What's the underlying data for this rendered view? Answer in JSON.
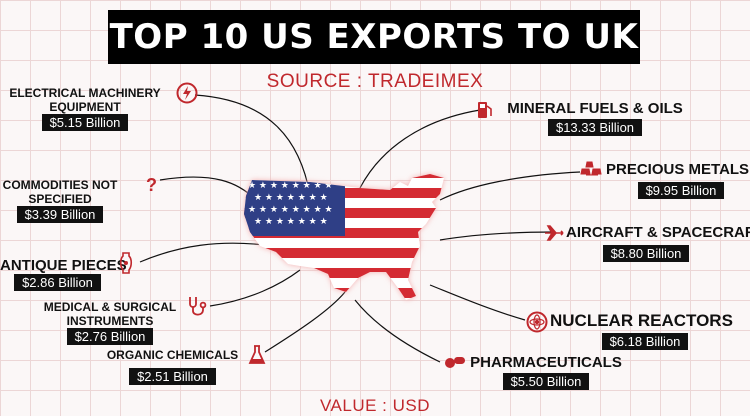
{
  "title": "TOP 10 US EXPORTS TO UK",
  "source": "SOURCE : TRADEIMEX",
  "footer": "VALUE : USD",
  "colors": {
    "accent": "#c0282d",
    "bar": "#000000",
    "flag_blue": "#2f3f86",
    "flag_red": "#d42b33"
  },
  "items": [
    {
      "label_line1": "ELECTRICAL MACHINERY",
      "label_line2": "EQUIPMENT",
      "value": "$5.15 Billion",
      "icon": "lightning-bolt-icon"
    },
    {
      "label_line1": "COMMODITIES NOT",
      "label_line2": "SPECIFIED",
      "value": "$3.39 Billion",
      "icon": "question-mark-icon"
    },
    {
      "label_line1": "ANTIQUE PIECES",
      "value": "$2.86 Billion",
      "icon": "antique-vase-icon"
    },
    {
      "label_line1": "MEDICAL &  SURGICAL",
      "label_line2": "INSTRUMENTS",
      "value": "$2.76 Billion",
      "icon": "stethoscope-icon"
    },
    {
      "label_line1": "ORGANIC CHEMICALS",
      "value": "$2.51 Billion",
      "icon": "flask-icon"
    },
    {
      "label_line1": "MINERAL FUELS & OILS",
      "value": "$13.33 Billion",
      "icon": "fuel-pump-icon"
    },
    {
      "label_line1": "PRECIOUS METALS",
      "value": "$9.95 Billion",
      "icon": "gold-bars-icon"
    },
    {
      "label_line1": "AIRCRAFT & SPACECRAFT",
      "value": "$8.80 Billion",
      "icon": "airplane-icon"
    },
    {
      "label_line1": "NUCLEAR REACTORS",
      "value": "$6.18 Billion",
      "icon": "atom-icon"
    },
    {
      "label_line1": "PHARMACEUTICALS",
      "value": "$5.50 Billion",
      "icon": "pills-icon"
    }
  ]
}
